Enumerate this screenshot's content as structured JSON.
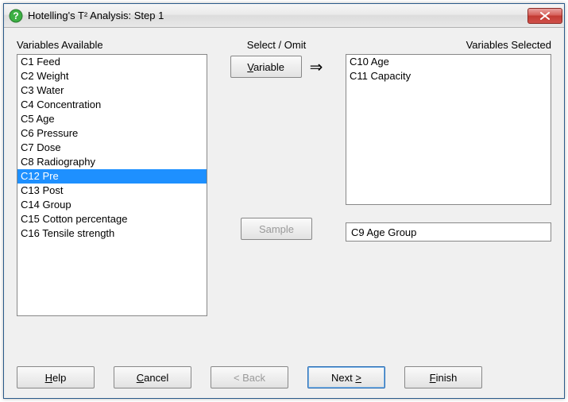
{
  "window": {
    "title": "Hotelling's T² Analysis: Step 1"
  },
  "labels": {
    "available": "Variables Available",
    "selectOmit": "Select / Omit",
    "selected": "Variables Selected"
  },
  "buttons": {
    "variable": "Variable",
    "sample": "Sample",
    "help": "Help",
    "cancel": "Cancel",
    "back": "< Back",
    "next": "Next >",
    "finish": "Finish"
  },
  "arrow": "⇒",
  "availableList": [
    {
      "label": "C1 Feed",
      "selected": false
    },
    {
      "label": "C2 Weight",
      "selected": false
    },
    {
      "label": "C3 Water",
      "selected": false
    },
    {
      "label": "C4 Concentration",
      "selected": false
    },
    {
      "label": "C5 Age",
      "selected": false
    },
    {
      "label": "C6 Pressure",
      "selected": false
    },
    {
      "label": "C7 Dose",
      "selected": false
    },
    {
      "label": "C8 Radiography",
      "selected": false
    },
    {
      "label": "C12 Pre",
      "selected": true
    },
    {
      "label": "C13 Post",
      "selected": false
    },
    {
      "label": "C14 Group",
      "selected": false
    },
    {
      "label": "C15 Cotton percentage",
      "selected": false
    },
    {
      "label": "C16 Tensile strength",
      "selected": false
    }
  ],
  "selectedList": [
    {
      "label": "C10 Age"
    },
    {
      "label": "C11 Capacity"
    }
  ],
  "sampleField": "C9 Age Group",
  "colors": {
    "selection": "#1e90ff",
    "windowBg": "#f0f0f0"
  }
}
